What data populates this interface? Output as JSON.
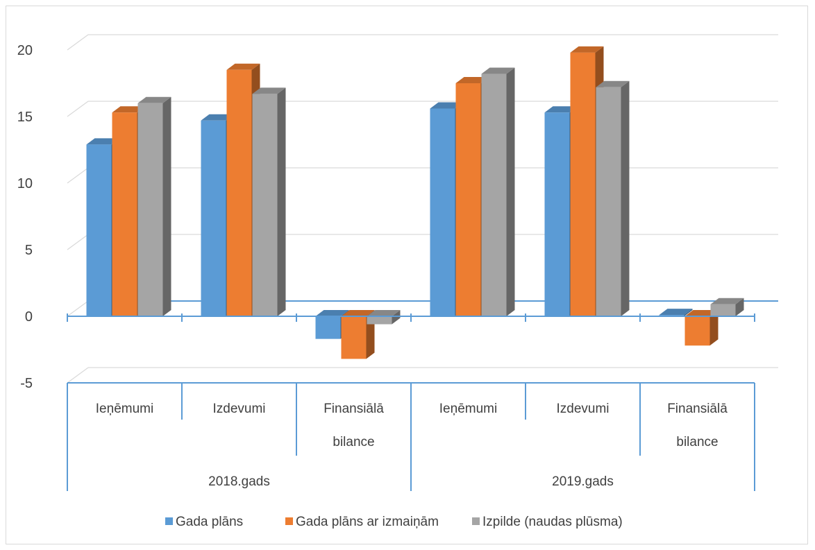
{
  "chart_data": {
    "type": "bar",
    "title": "",
    "xlabel": "",
    "ylabel": "",
    "ylim": [
      -5,
      20
    ],
    "yticks": [
      "-5",
      "0",
      "5",
      "10",
      "15",
      "20"
    ],
    "groups": [
      {
        "label": "2018.gads",
        "categories": [
          "Ieņēmumi",
          "Izdevumi",
          "Finansiālā bilance"
        ]
      },
      {
        "label": "2019.gads",
        "categories": [
          "Ieņēmumi",
          "Izdevumi",
          "Finansiālā bilance"
        ]
      }
    ],
    "category_lines": [
      [
        "Ieņēmumi"
      ],
      [
        "Izdevumi"
      ],
      [
        "Finansiālā",
        "bilance"
      ],
      [
        "Ieņēmumi"
      ],
      [
        "Izdevumi"
      ],
      [
        "Finansiālā",
        "bilance"
      ]
    ],
    "series": [
      {
        "name": "Gada plāns",
        "color": "#5b9bd5",
        "values": [
          12.9,
          14.7,
          -1.7,
          15.6,
          15.3,
          0.1
        ]
      },
      {
        "name": "Gada plāns ar izmaiņām",
        "color": "#ed7d31",
        "values": [
          15.3,
          18.5,
          -3.2,
          17.5,
          19.8,
          -2.2
        ]
      },
      {
        "name": "Izpilde (naudas plūsma)",
        "color": "#a5a5a5",
        "values": [
          16.0,
          16.7,
          -0.6,
          18.2,
          17.2,
          0.9
        ]
      }
    ],
    "grid": true,
    "legend_position": "bottom"
  }
}
